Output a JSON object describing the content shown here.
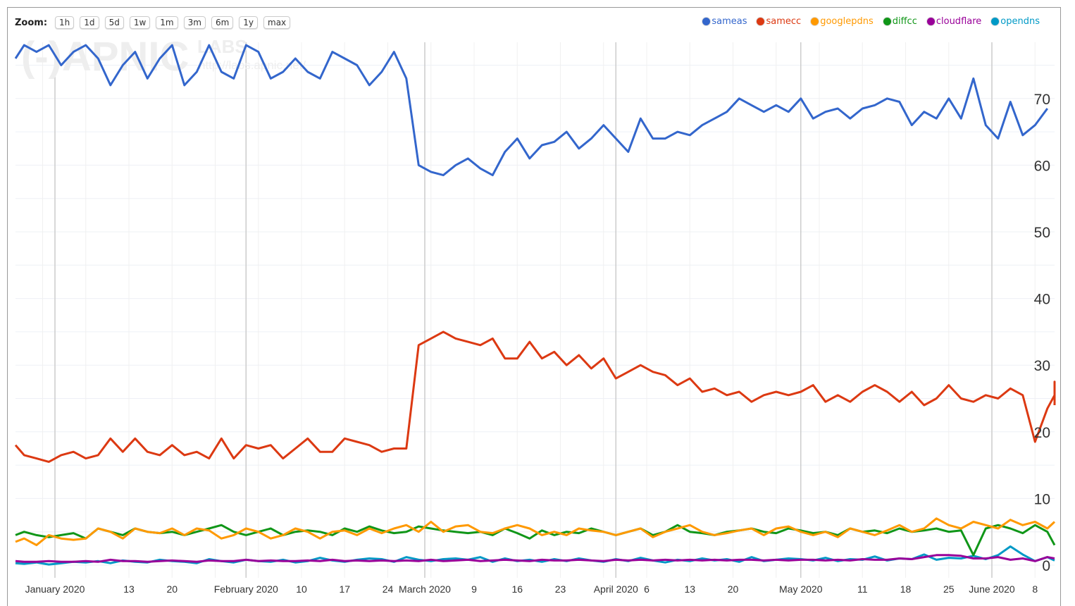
{
  "zoom": {
    "label": "Zoom:",
    "buttons": [
      "1h",
      "1d",
      "5d",
      "1w",
      "1m",
      "3m",
      "6m",
      "1y",
      "max"
    ]
  },
  "watermark": {
    "logo": "(-)APNIC LABS",
    "url": "http://labs.apnic.net/"
  },
  "chart_data": {
    "type": "line",
    "start_date": "2019-12-25",
    "step_days": 2,
    "ylim": [
      0,
      80
    ],
    "yticks": [
      0,
      10,
      20,
      30,
      40,
      50,
      60,
      70
    ],
    "xticks": [
      {
        "label": "January 2020",
        "day": 0,
        "month": true
      },
      {
        "label": "13",
        "day": 12
      },
      {
        "label": "20",
        "day": 19
      },
      {
        "label": "February 2020",
        "day": 31,
        "month": true
      },
      {
        "label": "10",
        "day": 40
      },
      {
        "label": "17",
        "day": 47
      },
      {
        "label": "24",
        "day": 54
      },
      {
        "label": "March 2020",
        "day": 60,
        "month": true
      },
      {
        "label": "9",
        "day": 68
      },
      {
        "label": "16",
        "day": 75
      },
      {
        "label": "23",
        "day": 82
      },
      {
        "label": "April 2020",
        "day": 91,
        "month": true
      },
      {
        "label": "6",
        "day": 96
      },
      {
        "label": "13",
        "day": 103
      },
      {
        "label": "20",
        "day": 110
      },
      {
        "label": "May 2020",
        "day": 121,
        "month": true
      },
      {
        "label": "11",
        "day": 131
      },
      {
        "label": "18",
        "day": 138
      },
      {
        "label": "25",
        "day": 145
      },
      {
        "label": "June 2020",
        "day": 152,
        "month": true
      },
      {
        "label": "8",
        "day": 159
      }
    ],
    "series": [
      {
        "name": "sameas",
        "color": "#3366cc",
        "values": [
          76,
          78,
          77,
          78,
          75,
          77,
          78,
          76,
          72,
          75,
          77,
          73,
          76,
          78,
          72,
          74,
          78,
          74,
          73,
          78,
          77,
          73,
          74,
          76,
          74,
          73,
          77,
          76,
          75,
          72,
          74,
          77,
          73,
          60,
          59,
          58.5,
          60,
          61,
          59.5,
          58.5,
          62,
          64,
          61,
          63,
          63.5,
          65,
          62.5,
          64,
          66,
          64,
          62,
          67,
          64,
          64,
          65,
          64.5,
          66,
          67,
          68,
          70,
          69,
          68,
          69,
          68,
          70,
          67,
          68,
          68.5,
          67,
          68.5,
          69,
          70,
          69.5,
          66,
          68,
          67,
          70,
          67,
          73,
          66,
          64,
          69.5,
          64.5,
          66,
          68.5
        ]
      },
      {
        "name": "samecc",
        "color": "#dc3912",
        "values": [
          18,
          16.5,
          16,
          15.5,
          16.5,
          17,
          16,
          16.5,
          19,
          17,
          19,
          17,
          16.5,
          18,
          16.5,
          17,
          16,
          19,
          16,
          18,
          17.5,
          18,
          16,
          17.5,
          19,
          17,
          17,
          19,
          18.5,
          18,
          17,
          17.5,
          17.5,
          33,
          34,
          35,
          34,
          33.5,
          33,
          34,
          31,
          31,
          33.5,
          31,
          32,
          30,
          31.5,
          29.5,
          31,
          28,
          29,
          30,
          29,
          28.5,
          27,
          28,
          26,
          26.5,
          25.5,
          26,
          24.5,
          25.5,
          26,
          25.5,
          26,
          27,
          24.5,
          25.5,
          24.5,
          26,
          27,
          26,
          24.5,
          26,
          24,
          25,
          27,
          25,
          24.5,
          25.5,
          25,
          26.5,
          25.5,
          18.5,
          23.5,
          25.5,
          27.5,
          24.5,
          26.5,
          24
        ]
      },
      {
        "name": "googlepdns",
        "color": "#ff9900",
        "values": [
          3.5,
          4,
          3,
          4.5,
          4,
          3.8,
          4,
          5.5,
          5,
          4,
          5.5,
          5,
          4.8,
          5.5,
          4.5,
          5.5,
          5.2,
          4,
          4.5,
          5.5,
          5,
          4,
          4.5,
          5.5,
          5,
          4,
          5,
          5.2,
          4.5,
          5.5,
          4.8,
          5.5,
          6,
          5,
          6.5,
          5,
          5.8,
          6,
          5,
          4.8,
          5.5,
          6,
          5.5,
          4.5,
          5,
          4.5,
          5.5,
          5.2,
          5,
          4.5,
          5,
          5.5,
          4.2,
          5,
          5.5,
          6,
          5,
          4.5,
          4.8,
          5.2,
          5.5,
          4.5,
          5.5,
          5.8,
          5,
          4.5,
          5,
          4.2,
          5.5,
          5,
          4.5,
          5.2,
          6,
          5,
          5.5,
          7,
          6,
          5.5,
          6.5,
          6,
          5.5,
          6.8,
          6,
          6.5,
          5.5,
          6.5
        ]
      },
      {
        "name": "diffcc",
        "color": "#109618",
        "values": [
          4.5,
          5,
          4.5,
          4.2,
          4.5,
          4.8,
          4,
          5.5,
          5,
          4.5,
          5.5,
          5,
          4.8,
          5,
          4.5,
          5,
          5.5,
          6,
          5,
          4.5,
          5,
          5.5,
          4.5,
          5,
          5.2,
          5,
          4.5,
          5.5,
          5,
          5.8,
          5.2,
          4.8,
          5,
          5.8,
          5.5,
          5.2,
          5,
          4.8,
          5,
          4.5,
          5.5,
          4.8,
          4,
          5.2,
          4.5,
          5,
          4.8,
          5.5,
          5,
          4.5,
          5,
          5.5,
          4.5,
          5,
          6,
          5,
          4.8,
          4.5,
          5,
          5.2,
          5.5,
          5,
          4.8,
          5.5,
          5.2,
          4.8,
          5,
          4.5,
          5.5,
          5,
          5.2,
          4.8,
          5.5,
          5,
          5.2,
          5.5,
          5,
          5.2,
          1.5,
          5.5,
          6,
          5.5,
          4.8,
          6,
          5,
          3
        ]
      },
      {
        "name": "cloudflare",
        "color": "#990099",
        "values": [
          0.6,
          0.5,
          0.5,
          0.6,
          0.5,
          0.5,
          0.6,
          0.5,
          0.8,
          0.6,
          0.6,
          0.5,
          0.6,
          0.7,
          0.6,
          0.5,
          0.7,
          0.6,
          0.6,
          0.8,
          0.6,
          0.7,
          0.6,
          0.6,
          0.7,
          0.6,
          0.8,
          0.6,
          0.7,
          0.6,
          0.7,
          0.6,
          0.7,
          0.6,
          0.8,
          0.6,
          0.7,
          0.8,
          0.6,
          0.7,
          0.8,
          0.7,
          0.6,
          0.8,
          0.7,
          0.7,
          0.8,
          0.7,
          0.6,
          0.8,
          0.7,
          0.8,
          0.7,
          0.8,
          0.7,
          0.8,
          0.7,
          0.8,
          0.7,
          0.8,
          0.8,
          0.7,
          0.8,
          0.7,
          0.8,
          0.8,
          0.7,
          0.8,
          0.7,
          0.9,
          0.8,
          0.8,
          1,
          0.9,
          1.2,
          1.5,
          1.5,
          1.4,
          1,
          1,
          1.2,
          0.8,
          1,
          0.6,
          1.2,
          1
        ]
      },
      {
        "name": "opendns",
        "color": "#0099c6",
        "values": [
          0.3,
          0.2,
          0.4,
          0.1,
          0.3,
          0.5,
          0.4,
          0.6,
          0.3,
          0.7,
          0.5,
          0.4,
          0.8,
          0.6,
          0.5,
          0.3,
          0.9,
          0.6,
          0.4,
          0.8,
          0.6,
          0.5,
          0.8,
          0.4,
          0.6,
          1.1,
          0.7,
          0.5,
          0.8,
          1,
          0.9,
          0.5,
          1.2,
          0.8,
          0.6,
          0.9,
          1,
          0.8,
          1.2,
          0.5,
          1,
          0.6,
          0.8,
          0.5,
          0.9,
          0.6,
          1,
          0.7,
          0.5,
          0.9,
          0.6,
          1.1,
          0.7,
          0.4,
          0.8,
          0.6,
          1,
          0.7,
          0.9,
          0.5,
          1.2,
          0.6,
          0.8,
          1,
          0.9,
          0.7,
          1.1,
          0.6,
          0.9,
          0.8,
          1.3,
          0.7,
          1,
          0.9,
          1.6,
          0.8,
          1.1,
          1,
          1.4,
          0.9,
          1.5,
          2.8,
          1.6,
          0.6,
          1.2,
          0.7
        ]
      }
    ]
  }
}
